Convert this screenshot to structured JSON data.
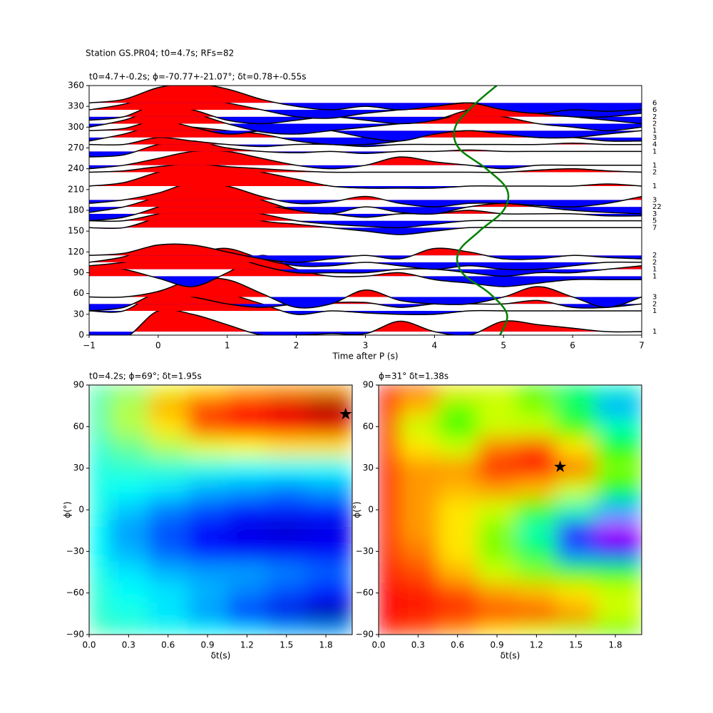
{
  "title": "Station GS.PR04; t0=4.7s; RFs=82",
  "chart_data": [
    {
      "type": "wiggle",
      "title": "t0=4.7+-0.2s; ϕ=-70.77+-21.07°; δt=0.78+-0.55s",
      "xlabel": "Time after P (s)",
      "xlim": [
        -1,
        7
      ],
      "ylim": [
        0,
        360
      ],
      "xticks": [
        {
          "value": -1,
          "label": "−1"
        },
        0,
        1,
        2,
        3,
        4,
        5,
        6,
        7
      ],
      "yticks": [
        0,
        30,
        60,
        90,
        120,
        150,
        180,
        210,
        240,
        270,
        300,
        330,
        360
      ],
      "pos_color": "#ff0000",
      "neg_color": "#0000ff",
      "line_color": "#000000",
      "x": [
        -1,
        -0.5,
        0,
        0.5,
        1,
        1.5,
        2,
        2.5,
        3,
        3.5,
        4,
        4.5,
        5,
        5.5,
        6,
        6.5,
        7
      ],
      "traces": [
        {
          "baz": 5,
          "count": 1,
          "values": [
            -5,
            -10,
            30,
            25,
            10,
            -5,
            -5,
            -3,
            -3,
            15,
            0,
            -5,
            15,
            10,
            5,
            0,
            0
          ]
        },
        {
          "baz": 35,
          "count": 1,
          "values": [
            0,
            0,
            28,
            35,
            25,
            10,
            -5,
            0,
            -3,
            -5,
            -5,
            0,
            0,
            0,
            0,
            0,
            0
          ]
        },
        {
          "baz": 45,
          "count": 2,
          "values": [
            -10,
            -5,
            15,
            10,
            0,
            -5,
            0,
            2,
            2,
            -5,
            0,
            0,
            0,
            5,
            -5,
            -5,
            0
          ]
        },
        {
          "baz": 55,
          "count": 3,
          "values": [
            0,
            0,
            8,
            25,
            25,
            5,
            -15,
            -10,
            10,
            -5,
            -10,
            -10,
            0,
            15,
            0,
            -15,
            0
          ]
        },
        {
          "baz": 85,
          "count": 1,
          "values": [
            15,
            10,
            -3,
            -15,
            5,
            30,
            10,
            0,
            0,
            5,
            -5,
            -10,
            -15,
            -10,
            -5,
            -5,
            -5
          ]
        },
        {
          "baz": 95,
          "count": 1,
          "values": [
            5,
            10,
            20,
            30,
            20,
            5,
            -5,
            -5,
            -5,
            0,
            0,
            -5,
            -10,
            -5,
            -5,
            0,
            5
          ]
        },
        {
          "baz": 105,
          "count": 2,
          "values": [
            0,
            8,
            25,
            15,
            20,
            5,
            -5,
            -5,
            0,
            -5,
            -10,
            -5,
            -10,
            -10,
            -5,
            0,
            0
          ]
        },
        {
          "baz": 115,
          "count": 2,
          "values": [
            0,
            3,
            15,
            15,
            5,
            -5,
            -10,
            -5,
            0,
            -5,
            10,
            5,
            -5,
            -5,
            0,
            -3,
            -5
          ]
        },
        {
          "baz": 155,
          "count": 7,
          "values": [
            0,
            0,
            15,
            30,
            25,
            10,
            5,
            0,
            -5,
            -10,
            -5,
            0,
            0,
            0,
            0,
            0,
            0
          ]
        },
        {
          "baz": 165,
          "count": 5,
          "values": [
            0,
            0,
            10,
            22,
            20,
            10,
            0,
            -5,
            -8,
            -10,
            -5,
            0,
            0,
            0,
            0,
            0,
            0
          ]
        },
        {
          "baz": 175,
          "count": 3,
          "values": [
            -10,
            -5,
            10,
            30,
            30,
            15,
            5,
            0,
            -5,
            0,
            0,
            5,
            0,
            0,
            0,
            -3,
            -3
          ]
        },
        {
          "baz": 185,
          "count": 22,
          "values": [
            -8,
            0,
            15,
            32,
            25,
            10,
            -5,
            -10,
            0,
            -8,
            -10,
            0,
            5,
            0,
            -5,
            -8,
            -10
          ]
        },
        {
          "baz": 195,
          "count": 3,
          "values": [
            -5,
            0,
            10,
            25,
            20,
            5,
            -5,
            -3,
            5,
            -5,
            -10,
            -5,
            -5,
            -8,
            -10,
            -5,
            5
          ]
        },
        {
          "baz": 215,
          "count": 1,
          "values": [
            0,
            5,
            20,
            30,
            28,
            20,
            10,
            0,
            -3,
            -3,
            -3,
            0,
            0,
            0,
            0,
            3,
            0
          ]
        },
        {
          "baz": 235,
          "count": 2,
          "values": [
            0,
            2,
            8,
            12,
            8,
            5,
            2,
            0,
            0,
            0,
            0,
            0,
            0,
            3,
            5,
            2,
            0
          ]
        },
        {
          "baz": 245,
          "count": 1,
          "values": [
            -5,
            0,
            10,
            20,
            20,
            10,
            0,
            -5,
            0,
            12,
            5,
            0,
            -5,
            0,
            0,
            0,
            0
          ]
        },
        {
          "baz": 265,
          "count": 1,
          "values": [
            -8,
            -5,
            10,
            15,
            5,
            0,
            -2,
            0,
            -3,
            0,
            0,
            2,
            0,
            0,
            0,
            0,
            0
          ]
        },
        {
          "baz": 275,
          "count": 4,
          "values": [
            0,
            0,
            10,
            5,
            0,
            -3,
            0,
            0,
            -3,
            0,
            0,
            0,
            0,
            0,
            2,
            0,
            0
          ]
        },
        {
          "baz": 285,
          "count": 3,
          "values": [
            -5,
            5,
            18,
            15,
            10,
            5,
            -5,
            -10,
            -10,
            -5,
            5,
            10,
            5,
            0,
            0,
            -5,
            -5
          ]
        },
        {
          "baz": 295,
          "count": 1,
          "values": [
            0,
            3,
            15,
            5,
            -5,
            0,
            5,
            0,
            -10,
            -15,
            -5,
            0,
            -5,
            -10,
            -10,
            -5,
            0
          ]
        },
        {
          "baz": 305,
          "count": 2,
          "values": [
            -5,
            5,
            20,
            15,
            0,
            -12,
            -15,
            -10,
            -5,
            0,
            5,
            15,
            10,
            0,
            -5,
            -10,
            -5
          ]
        },
        {
          "baz": 315,
          "count": 2,
          "values": [
            -5,
            0,
            18,
            10,
            -5,
            -10,
            -5,
            0,
            -5,
            -10,
            -5,
            10,
            15,
            5,
            0,
            -5,
            -10
          ]
        },
        {
          "baz": 325,
          "count": 6,
          "values": [
            0,
            8,
            22,
            20,
            10,
            0,
            -10,
            -12,
            -5,
            0,
            5,
            10,
            5,
            -5,
            -10,
            -10,
            -5
          ]
        },
        {
          "baz": 335,
          "count": 6,
          "values": [
            0,
            5,
            22,
            28,
            20,
            5,
            -5,
            -10,
            -5,
            -10,
            -5,
            0,
            -10,
            -15,
            -10,
            -12,
            -10
          ]
        }
      ],
      "curve": {
        "color": "#008000",
        "x": [
          4.95,
          5.05,
          4.8,
          4.4,
          4.35,
          4.65,
          5.0,
          5.05,
          4.75,
          4.35,
          4.3,
          4.55,
          4.9
        ],
        "y": [
          0,
          30,
          60,
          90,
          120,
          150,
          180,
          210,
          240,
          270,
          300,
          330,
          360
        ]
      }
    },
    {
      "type": "heatmap",
      "colormap": "jet",
      "title": "t0=4.2s; ϕ=69°; δt=1.95s",
      "xlabel": "δt(s)",
      "ylabel": "ϕ(°)",
      "xlim": [
        0,
        2.0
      ],
      "ylim": [
        -90,
        90
      ],
      "xticks": [
        {
          "value": 0,
          "label": "0.0"
        },
        0.3,
        0.6,
        0.9,
        1.2,
        1.5,
        1.8
      ],
      "yticks": [
        {
          "value": -90,
          "label": "−90"
        },
        {
          "value": -60,
          "label": "−60"
        },
        {
          "value": -30,
          "label": "−30"
        },
        0,
        30,
        60,
        90
      ],
      "x": [
        0,
        0.3,
        0.6,
        0.9,
        1.2,
        1.5,
        1.8
      ],
      "y": [
        90,
        75,
        60,
        45,
        30,
        15,
        0,
        -15,
        -30,
        -45,
        -60,
        -75,
        -90
      ],
      "z": [
        [
          0.45,
          0.5,
          0.6,
          0.65,
          0.7,
          0.72,
          0.72
        ],
        [
          0.45,
          0.55,
          0.7,
          0.8,
          0.85,
          0.9,
          0.95
        ],
        [
          0.45,
          0.55,
          0.65,
          0.8,
          0.85,
          0.88,
          0.9
        ],
        [
          0.42,
          0.48,
          0.55,
          0.6,
          0.62,
          0.65,
          0.65
        ],
        [
          0.4,
          0.42,
          0.42,
          0.4,
          0.38,
          0.38,
          0.38
        ],
        [
          0.4,
          0.38,
          0.35,
          0.3,
          0.28,
          0.25,
          0.28
        ],
        [
          0.4,
          0.32,
          0.25,
          0.2,
          0.15,
          0.15,
          0.15
        ],
        [
          0.38,
          0.28,
          0.2,
          0.12,
          0.1,
          0.08,
          0.1
        ],
        [
          0.38,
          0.3,
          0.22,
          0.15,
          0.12,
          0.12,
          0.12
        ],
        [
          0.4,
          0.35,
          0.3,
          0.28,
          0.28,
          0.25,
          0.22
        ],
        [
          0.42,
          0.38,
          0.35,
          0.3,
          0.25,
          0.2,
          0.15
        ],
        [
          0.42,
          0.4,
          0.35,
          0.28,
          0.18,
          0.1,
          0.05
        ],
        [
          0.45,
          0.42,
          0.4,
          0.38,
          0.35,
          0.3,
          0.28
        ]
      ],
      "best": {
        "x": 1.95,
        "y": 69
      }
    },
    {
      "type": "heatmap",
      "colormap": "hsv",
      "title": "ϕ=31° δt=1.38s",
      "xlabel": "δt(s)",
      "ylabel": "ϕ(°)",
      "xlim": [
        0,
        2.0
      ],
      "ylim": [
        -90,
        90
      ],
      "xticks": [
        {
          "value": 0,
          "label": "0.0"
        },
        0.3,
        0.6,
        0.9,
        1.2,
        1.5,
        1.8
      ],
      "yticks": [
        {
          "value": -90,
          "label": "−90"
        },
        {
          "value": -60,
          "label": "−60"
        },
        {
          "value": -30,
          "label": "−30"
        },
        0,
        30,
        60,
        90
      ],
      "x": [
        0,
        0.3,
        0.6,
        0.9,
        1.2,
        1.5,
        1.8
      ],
      "y": [
        90,
        75,
        60,
        45,
        30,
        15,
        0,
        -15,
        -30,
        -45,
        -60,
        -75,
        -90
      ],
      "z": [
        [
          0,
          0.05,
          0.15,
          0.2,
          0.3,
          0.4,
          0.45
        ],
        [
          0,
          0.12,
          0.25,
          0.2,
          0.25,
          0.4,
          0.55
        ],
        [
          0,
          0.2,
          0.3,
          0.2,
          0.2,
          0.3,
          0.45
        ],
        [
          0,
          0.15,
          0.2,
          0.08,
          0.05,
          0.15,
          0.35
        ],
        [
          0,
          0.1,
          0.1,
          0.02,
          0,
          0.08,
          0.25
        ],
        [
          0,
          0.1,
          0.12,
          0.1,
          0.12,
          0.2,
          0.35
        ],
        [
          0,
          0.1,
          0.15,
          0.2,
          0.3,
          0.45,
          0.55
        ],
        [
          0,
          0.1,
          0.15,
          0.25,
          0.45,
          0.7,
          0.78
        ],
        [
          0,
          0.08,
          0.15,
          0.25,
          0.4,
          0.6,
          0.7
        ],
        [
          0,
          0.05,
          0.12,
          0.2,
          0.25,
          0.3,
          0.35
        ],
        [
          0,
          0.02,
          0.05,
          0.1,
          0.12,
          0.15,
          0.2
        ],
        [
          0,
          0.02,
          0.03,
          0.05,
          0.05,
          0.1,
          0.2
        ],
        [
          0,
          0.05,
          0.1,
          0.15,
          0.2,
          0.25,
          0.3
        ]
      ],
      "best": {
        "x": 1.38,
        "y": 31
      }
    }
  ]
}
